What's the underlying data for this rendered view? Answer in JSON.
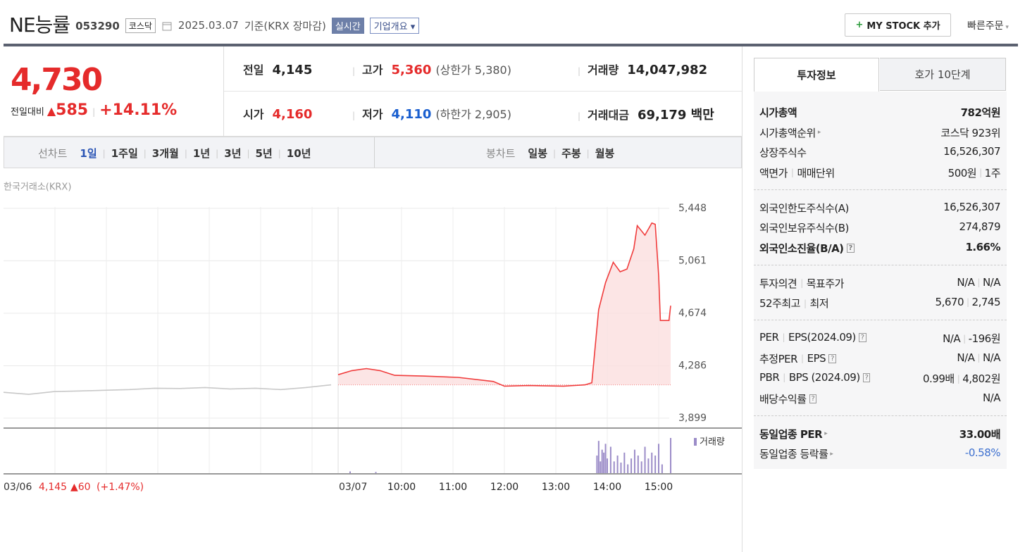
{
  "header": {
    "name": "NE능률",
    "code": "053290",
    "market": "코스닥",
    "date": "2025.03.07",
    "basis": "기준(KRX 장마감)",
    "realtime": "실시간",
    "overview": "기업개요",
    "mystock": "MY STOCK 추가",
    "quick": "빠른주문"
  },
  "price": {
    "current": "4,730",
    "change_label": "전일대비",
    "change": "585",
    "change_rate": "+14.11%"
  },
  "summary": {
    "rows": [
      [
        {
          "label": "전일",
          "value": "4,145",
          "color": "#222"
        },
        {
          "label": "고가",
          "value": "5,360",
          "extra": "(상한가 5,380)",
          "color": "#e52b2b"
        },
        {
          "label": "거래량",
          "value": "14,047,982",
          "color": "#222"
        }
      ],
      [
        {
          "label": "시가",
          "value": "4,160",
          "color": "#e52b2b"
        },
        {
          "label": "저가",
          "value": "4,110",
          "extra": "(하한가 2,905)",
          "color": "#1a5fcf"
        },
        {
          "label": "거래대금",
          "value": "69,179 백만",
          "color": "#222"
        }
      ]
    ]
  },
  "period": {
    "line_label": "선차트",
    "line": [
      "1일",
      "1주일",
      "3개월",
      "1년",
      "3년",
      "5년",
      "10년"
    ],
    "selected": 0,
    "candle_label": "봉차트",
    "candle": [
      "일봉",
      "주봉",
      "월봉"
    ]
  },
  "chart_data": {
    "type": "line",
    "source": "한국거래소(KRX)",
    "ylim": [
      3831,
      5458
    ],
    "yticks": [
      {
        "value": 5448,
        "label": "5,448"
      },
      {
        "value": 5061,
        "label": "5,061"
      },
      {
        "value": 4674,
        "label": "4,674"
      },
      {
        "value": 4286,
        "label": "4,286"
      },
      {
        "value": 3899,
        "label": "3,899"
      }
    ],
    "xticks": [
      "10:00",
      "11:00",
      "12:00",
      "13:00",
      "14:00",
      "15:00"
    ],
    "prev_close": {
      "value": 4145,
      "label": "4,145"
    },
    "prev_day": {
      "date": "03/06",
      "change": "▲60",
      "rate": "(+1.47%)"
    },
    "today": {
      "date": "03/07"
    },
    "series": [
      {
        "color": "#c8c8c8",
        "x": [
          "09:00",
          "09:30",
          "10:00",
          "10:30",
          "11:00",
          "11:30",
          "12:00",
          "12:30",
          "13:00",
          "13:30",
          "14:00",
          "14:30",
          "15:00",
          "15:30"
        ],
        "values": [
          4090,
          4075,
          4095,
          4100,
          4105,
          4110,
          4120,
          4118,
          4125,
          4115,
          4120,
          4110,
          4125,
          4145
        ]
      },
      {
        "color": "#f03c3c",
        "fill": "#fbdede",
        "x": [
          "08:46",
          "09:02",
          "09:19",
          "09:35",
          "09:52",
          "10:25",
          "11:06",
          "11:47",
          "12:00",
          "12:28",
          "13:09",
          "13:34",
          "13:42",
          "13:50",
          "13:58",
          "14:07",
          "14:15",
          "14:23",
          "14:31",
          "14:35",
          "14:44",
          "14:52",
          "14:56",
          "15:00",
          "15:02",
          "15:08",
          "15:12",
          "15:14"
        ],
        "values": [
          4220,
          4250,
          4265,
          4250,
          4215,
          4210,
          4200,
          4170,
          4135,
          4140,
          4135,
          4145,
          4160,
          4700,
          4900,
          5050,
          4980,
          5000,
          5150,
          5320,
          5250,
          5340,
          5330,
          4950,
          4620,
          4620,
          4620,
          4730
        ]
      }
    ],
    "volume": {
      "name": "거래량",
      "color": "#9b8cc8",
      "x": [
        "09:00",
        "09:30",
        "13:48",
        "13:50",
        "13:52",
        "13:54",
        "13:56",
        "13:58",
        "14:00",
        "14:04",
        "14:08",
        "14:12",
        "14:16",
        "14:20",
        "14:24",
        "14:28",
        "14:32",
        "14:36",
        "14:40",
        "14:44",
        "14:48",
        "14:52",
        "14:56",
        "15:00",
        "15:04",
        "15:14"
      ],
      "values": [
        3,
        2,
        30,
        55,
        20,
        40,
        35,
        50,
        25,
        45,
        20,
        30,
        18,
        35,
        15,
        25,
        40,
        30,
        20,
        45,
        25,
        35,
        30,
        50,
        15,
        60
      ]
    }
  },
  "side": {
    "tabs": [
      "투자정보",
      "호가 10단계"
    ],
    "groups": [
      [
        {
          "label": [
            "시가총액"
          ],
          "value": [
            "782억원"
          ],
          "strong": true
        },
        {
          "label": [
            "시가총액순위"
          ],
          "value": [
            "코스닥 923위"
          ],
          "link": true
        },
        {
          "label": [
            "상장주식수"
          ],
          "value": [
            "16,526,307"
          ]
        },
        {
          "label": [
            "액면가",
            "매매단위"
          ],
          "value": [
            "500원",
            "1주"
          ]
        }
      ],
      [
        {
          "label": [
            "외국인한도주식수(A)"
          ],
          "value": [
            "16,526,307"
          ]
        },
        {
          "label": [
            "외국인보유주식수(B)"
          ],
          "value": [
            "274,879"
          ]
        },
        {
          "label": [
            "외국인소진율(B/A)"
          ],
          "value": [
            "1.66%"
          ],
          "strong": true,
          "help": true
        }
      ],
      [
        {
          "label": [
            "투자의견",
            "목표주가"
          ],
          "value": [
            "N/A",
            "N/A"
          ]
        },
        {
          "label": [
            "52주최고",
            "최저"
          ],
          "value": [
            "5,670",
            "2,745"
          ]
        }
      ],
      [
        {
          "label": [
            "PER",
            "EPS(2024.09)"
          ],
          "value": [
            "N/A",
            "-196원"
          ],
          "help": true
        },
        {
          "label": [
            "추정PER",
            "EPS"
          ],
          "value": [
            "N/A",
            "N/A"
          ],
          "help": true
        },
        {
          "label": [
            "PBR",
            "BPS (2024.09)"
          ],
          "value": [
            "0.99배",
            "4,802원"
          ],
          "help": true
        },
        {
          "label": [
            "배당수익률"
          ],
          "value": [
            "N/A"
          ],
          "help": true
        }
      ],
      [
        {
          "label": [
            "동일업종 PER"
          ],
          "value": [
            "33.00배"
          ],
          "strong": true,
          "link": true
        },
        {
          "label": [
            "동일업종 등락률"
          ],
          "value": [
            "-0.58%"
          ],
          "link": true,
          "color": "#3c6fcf"
        }
      ]
    ]
  }
}
